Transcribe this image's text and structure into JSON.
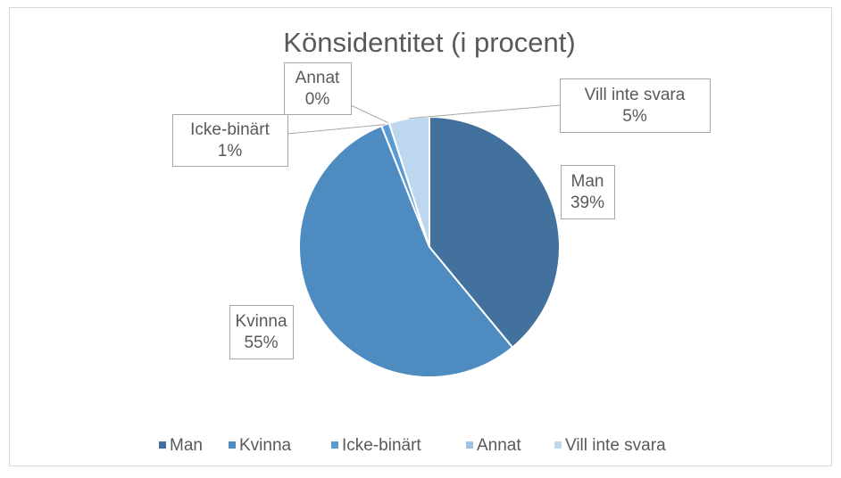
{
  "chart_data": {
    "type": "pie",
    "title": "Könsidentitet (i procent)",
    "categories": [
      "Man",
      "Kvinna",
      "Icke-binärt",
      "Annat",
      "Vill inte svara"
    ],
    "values": [
      39,
      55,
      1,
      0,
      5
    ],
    "value_labels": [
      "39%",
      "55%",
      "1%",
      "0%",
      "5%"
    ],
    "colors": [
      "#41719c",
      "#4e8bc0",
      "#5b9bd5",
      "#9dc3e6",
      "#bdd7ee"
    ],
    "legend": "bottom"
  }
}
